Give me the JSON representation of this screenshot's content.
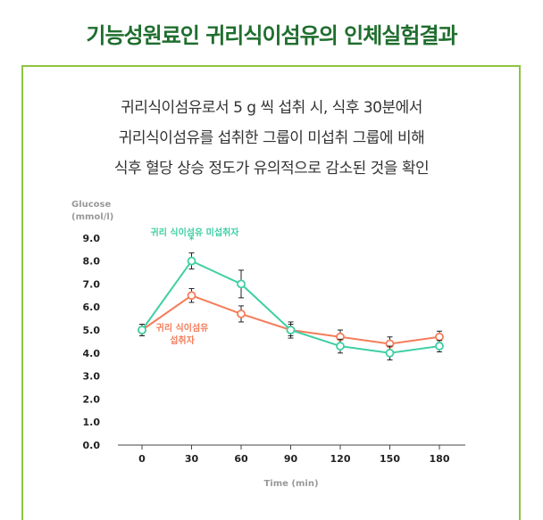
{
  "page": {
    "title": "기능성원료인 귀리식이섬유의 인체실험결과",
    "description": [
      "귀리식이섬유로서 5 g 씩 섭취 시, 식후 30분에서",
      "귀리식이섬유를 섭취한 그룹이 미섭취 그룹에 비해",
      "식후 혈당 상승 정도가 유의적으로 감소된 것을 확인"
    ]
  },
  "chart_data": {
    "type": "line",
    "title": "",
    "xlabel": "Time (min)",
    "ylabel_line1": "Glucose",
    "ylabel_line2": "(mmol/l)",
    "x": [
      0,
      30,
      60,
      90,
      120,
      150,
      180
    ],
    "x_ticks": [
      "0",
      "30",
      "60",
      "90",
      "120",
      "150",
      "180"
    ],
    "y_ticks": [
      "0.0",
      "1.0",
      "2.0",
      "3.0",
      "4.0",
      "5.0",
      "6.0",
      "7.0",
      "8.0",
      "9.0"
    ],
    "ylim": [
      0,
      9
    ],
    "series": [
      {
        "name": "귀리 식이섬유 미섭취자",
        "color": "#3ecfa3",
        "values": [
          5.0,
          8.0,
          7.0,
          5.0,
          4.3,
          4.0,
          4.3
        ],
        "errors": [
          0.25,
          0.35,
          0.6,
          0.35,
          0.3,
          0.3,
          0.25
        ]
      },
      {
        "name_line1": "귀리 식이섬유",
        "name_line2": "섭취자",
        "color": "#f47d5b",
        "values": [
          5.0,
          6.5,
          5.7,
          5.0,
          4.7,
          4.4,
          4.7
        ],
        "errors": [
          0.25,
          0.3,
          0.35,
          0.25,
          0.3,
          0.3,
          0.25
        ]
      }
    ],
    "annotations": [
      {
        "text": "*",
        "at_x": 30,
        "series": 0
      }
    ]
  }
}
